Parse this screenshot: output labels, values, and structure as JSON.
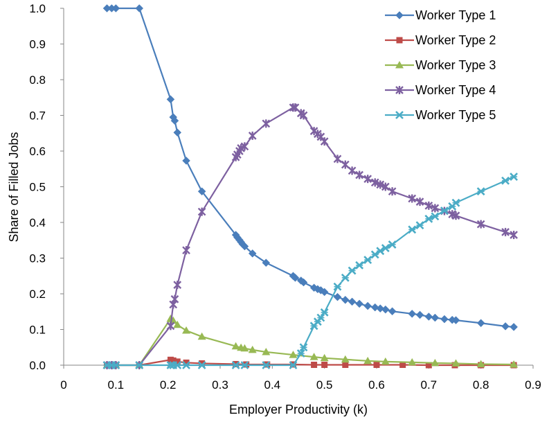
{
  "chart_data": {
    "type": "line",
    "xlabel": "Employer Productivity (k)",
    "ylabel": "Share of Filled Jobs",
    "xlim": [
      0,
      0.9
    ],
    "ylim": [
      0,
      1.0
    ],
    "xticks": [
      "0",
      "0.1",
      "0.2",
      "0.3",
      "0.4",
      "0.5",
      "0.6",
      "0.7",
      "0.8",
      "0.9"
    ],
    "yticks": [
      "0.0",
      "0.1",
      "0.2",
      "0.3",
      "0.4",
      "0.5",
      "0.6",
      "0.7",
      "0.8",
      "0.9",
      "1.0"
    ],
    "legend_position": "top-right",
    "grid": false,
    "series": [
      {
        "name": "Worker Type 1",
        "color": "#4a7ebb",
        "marker": "diamond",
        "x": [
          0.083,
          0.092,
          0.1,
          0.145,
          0.205,
          0.21,
          0.213,
          0.218,
          0.235,
          0.265,
          0.33,
          0.333,
          0.337,
          0.34,
          0.343,
          0.347,
          0.362,
          0.388,
          0.44,
          0.444,
          0.455,
          0.46,
          0.48,
          0.487,
          0.493,
          0.5,
          0.525,
          0.54,
          0.553,
          0.567,
          0.583,
          0.597,
          0.607,
          0.617,
          0.63,
          0.668,
          0.683,
          0.7,
          0.712,
          0.73,
          0.745,
          0.752,
          0.8,
          0.847,
          0.863
        ],
        "y": [
          1.0,
          1.0,
          1.0,
          1.0,
          0.745,
          0.695,
          0.685,
          0.652,
          0.573,
          0.487,
          0.365,
          0.358,
          0.351,
          0.345,
          0.339,
          0.333,
          0.313,
          0.287,
          0.25,
          0.245,
          0.237,
          0.232,
          0.217,
          0.213,
          0.21,
          0.205,
          0.191,
          0.183,
          0.178,
          0.172,
          0.166,
          0.162,
          0.159,
          0.156,
          0.151,
          0.144,
          0.141,
          0.136,
          0.133,
          0.129,
          0.127,
          0.126,
          0.118,
          0.109,
          0.107
        ]
      },
      {
        "name": "Worker Type 2",
        "color": "#be4b48",
        "marker": "square",
        "x": [
          0.083,
          0.092,
          0.1,
          0.145,
          0.205,
          0.21,
          0.218,
          0.235,
          0.265,
          0.33,
          0.35,
          0.39,
          0.44,
          0.48,
          0.5,
          0.54,
          0.6,
          0.65,
          0.7,
          0.75,
          0.8,
          0.863
        ],
        "y": [
          0.0,
          0.0,
          0.0,
          0.0,
          0.015,
          0.013,
          0.01,
          0.007,
          0.005,
          0.003,
          0.002,
          0.002,
          0.002,
          0.001,
          0.001,
          0.001,
          0.001,
          0.001,
          0.0,
          0.0,
          0.0,
          0.0
        ]
      },
      {
        "name": "Worker Type 3",
        "color": "#98b954",
        "marker": "triangle",
        "x": [
          0.083,
          0.092,
          0.1,
          0.145,
          0.205,
          0.21,
          0.218,
          0.235,
          0.265,
          0.33,
          0.34,
          0.347,
          0.362,
          0.388,
          0.44,
          0.48,
          0.5,
          0.54,
          0.583,
          0.617,
          0.668,
          0.712,
          0.752,
          0.8,
          0.863
        ],
        "y": [
          0.0,
          0.0,
          0.0,
          0.0,
          0.13,
          0.125,
          0.113,
          0.097,
          0.08,
          0.053,
          0.049,
          0.047,
          0.043,
          0.037,
          0.029,
          0.023,
          0.02,
          0.016,
          0.012,
          0.01,
          0.008,
          0.006,
          0.005,
          0.003,
          0.002
        ]
      },
      {
        "name": "Worker Type 4",
        "color": "#7d60a0",
        "marker": "asterisk",
        "x": [
          0.083,
          0.092,
          0.1,
          0.145,
          0.205,
          0.21,
          0.213,
          0.218,
          0.235,
          0.265,
          0.33,
          0.333,
          0.337,
          0.34,
          0.347,
          0.362,
          0.388,
          0.44,
          0.444,
          0.455,
          0.46,
          0.48,
          0.487,
          0.493,
          0.5,
          0.525,
          0.54,
          0.553,
          0.567,
          0.583,
          0.597,
          0.607,
          0.617,
          0.63,
          0.668,
          0.683,
          0.7,
          0.712,
          0.73,
          0.745,
          0.752,
          0.8,
          0.847,
          0.863
        ],
        "y": [
          0.0,
          0.0,
          0.0,
          0.0,
          0.11,
          0.17,
          0.185,
          0.225,
          0.322,
          0.43,
          0.583,
          0.59,
          0.6,
          0.608,
          0.613,
          0.643,
          0.677,
          0.722,
          0.722,
          0.706,
          0.7,
          0.656,
          0.648,
          0.64,
          0.627,
          0.578,
          0.562,
          0.545,
          0.533,
          0.522,
          0.512,
          0.506,
          0.5,
          0.487,
          0.467,
          0.458,
          0.447,
          0.44,
          0.432,
          0.423,
          0.419,
          0.395,
          0.373,
          0.365
        ]
      },
      {
        "name": "Worker Type 5",
        "color": "#4bacc6",
        "marker": "star",
        "x": [
          0.083,
          0.092,
          0.1,
          0.145,
          0.205,
          0.21,
          0.218,
          0.235,
          0.265,
          0.33,
          0.347,
          0.388,
          0.44,
          0.455,
          0.46,
          0.48,
          0.487,
          0.493,
          0.5,
          0.525,
          0.54,
          0.553,
          0.567,
          0.583,
          0.597,
          0.607,
          0.617,
          0.63,
          0.668,
          0.683,
          0.7,
          0.712,
          0.73,
          0.745,
          0.752,
          0.8,
          0.847,
          0.863
        ],
        "y": [
          0.0,
          0.0,
          0.0,
          0.0,
          0.0,
          0.0,
          0.0,
          0.0,
          0.0,
          0.0,
          0.0,
          0.0,
          0.0,
          0.033,
          0.05,
          0.11,
          0.122,
          0.133,
          0.148,
          0.22,
          0.245,
          0.265,
          0.28,
          0.295,
          0.31,
          0.32,
          0.328,
          0.338,
          0.38,
          0.392,
          0.41,
          0.417,
          0.433,
          0.445,
          0.455,
          0.487,
          0.517,
          0.528
        ]
      }
    ]
  }
}
